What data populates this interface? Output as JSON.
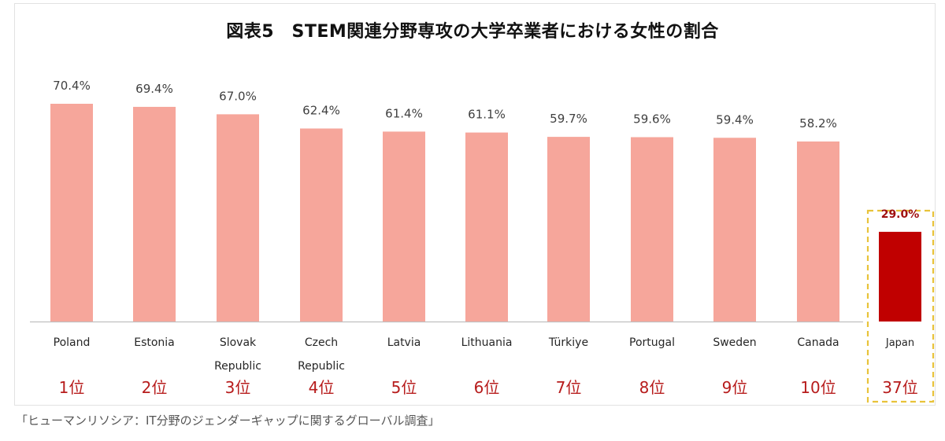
{
  "colors": {
    "bar": "#f6a69b",
    "highlight_bar": "#c00000",
    "rank_text": "#b71c1c",
    "highlight_value": "#a01010",
    "dashed_box": "#e8c33a",
    "baseline": "#bfbfbf"
  },
  "source_note": "「ヒューマンリソシア：IT分野のジェンダーギャップに関するグローバル調査」",
  "chart_data": {
    "type": "bar",
    "title": "図表5　STEM関連分野専攻の大学卒業者における女性の割合",
    "categories": [
      "Poland",
      "Estonia",
      "Slovak Republic",
      "Czech Republic",
      "Latvia",
      "Lithuania",
      "Türkiye",
      "Portugal",
      "Sweden",
      "Canada",
      "Japan"
    ],
    "category_lines": [
      [
        "Poland"
      ],
      [
        "Estonia"
      ],
      [
        "Slovak",
        "Republic"
      ],
      [
        "Czech",
        "Republic"
      ],
      [
        "Latvia"
      ],
      [
        "Lithuania"
      ],
      [
        "Türkiye"
      ],
      [
        "Portugal"
      ],
      [
        "Sweden"
      ],
      [
        "Canada"
      ],
      [
        "Japan"
      ]
    ],
    "values": [
      70.4,
      69.4,
      67.0,
      62.4,
      61.4,
      61.1,
      59.7,
      59.6,
      59.4,
      58.2,
      29.0
    ],
    "value_labels": [
      "70.4%",
      "69.4%",
      "67.0%",
      "62.4%",
      "61.4%",
      "61.1%",
      "59.7%",
      "59.6%",
      "59.4%",
      "58.2%",
      "29.0%"
    ],
    "ranks": [
      "1位",
      "2位",
      "3位",
      "4位",
      "5位",
      "6位",
      "7位",
      "8位",
      "9位",
      "10位",
      "37位"
    ],
    "highlight_index": 10,
    "ylim": [
      0,
      70.4
    ],
    "grid": false,
    "xlabel": "",
    "ylabel": ""
  }
}
